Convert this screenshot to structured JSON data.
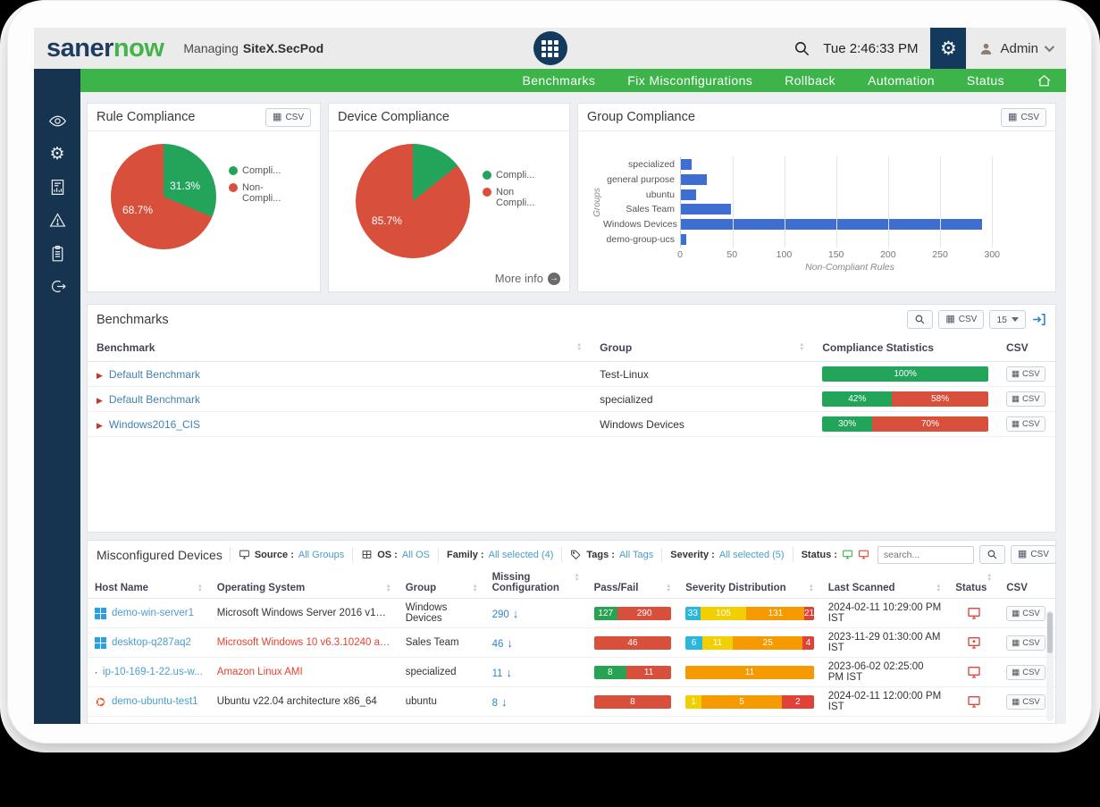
{
  "header": {
    "logo_saner": "saner",
    "logo_now": "now",
    "managing_label": "Managing",
    "tenant": "SiteX.SecPod",
    "time": "Tue 2:46:33 PM",
    "user_label": "Admin"
  },
  "nav": {
    "items": [
      "Benchmarks",
      "Fix Misconfigurations",
      "Rollback",
      "Automation",
      "Status"
    ]
  },
  "labels": {
    "csv": "CSV"
  },
  "chart_data": [
    {
      "type": "pie",
      "title": "Rule Compliance",
      "labels": [
        "Compliant",
        "Non-Compliant"
      ],
      "legend": [
        "Compli...",
        "Non-Compli..."
      ],
      "values": [
        31.3,
        68.7
      ],
      "data_labels": [
        "31.3%",
        "68.7%"
      ],
      "colors": [
        "#23a45b",
        "#d8503c"
      ],
      "legend_position": "right"
    },
    {
      "type": "pie",
      "title": "Device Compliance",
      "labels": [
        "Compliant",
        "Non Compliant"
      ],
      "legend": [
        "Compli...",
        "Non Compli..."
      ],
      "values": [
        14.3,
        85.7
      ],
      "data_labels": [
        "",
        "85.7%"
      ],
      "colors": [
        "#23a45b",
        "#d8503c"
      ],
      "legend_position": "right"
    },
    {
      "type": "bar",
      "title": "Group Compliance",
      "orientation": "horizontal",
      "categories": [
        "specialized",
        "general purpose",
        "ubuntu",
        "Sales Team",
        "Windows Devices",
        "demo-group-ucs"
      ],
      "values": [
        10,
        25,
        15,
        48,
        290,
        5
      ],
      "xticks": [
        0,
        50,
        100,
        150,
        200,
        250,
        300
      ],
      "xmax": 335,
      "xlabel": "Non-Compliant Rules",
      "ylabel": "Groups",
      "bar_color": "#3e6ed0",
      "grid": true
    }
  ],
  "panels": {
    "rule": {
      "title": "Rule Compliance"
    },
    "device": {
      "title": "Device Compliance",
      "more_info": "More info"
    },
    "group": {
      "title": "Group Compliance"
    }
  },
  "benchmarks": {
    "title": "Benchmarks",
    "page_size": "15",
    "columns": [
      "Benchmark",
      "Group",
      "Compliance Statistics",
      "CSV"
    ],
    "rows": [
      {
        "name": "Default Benchmark",
        "group": "Test-Linux",
        "segments": [
          {
            "label": "100%",
            "color": "green"
          }
        ]
      },
      {
        "name": "Default Benchmark",
        "group": "specialized",
        "segments": [
          {
            "label": "42%",
            "color": "green"
          },
          {
            "label": "58%",
            "color": "red"
          }
        ]
      },
      {
        "name": "Windows2016_CIS",
        "group": "Windows Devices",
        "segments": [
          {
            "label": "30%",
            "color": "green"
          },
          {
            "label": "70%",
            "color": "red"
          }
        ]
      }
    ]
  },
  "misconfigured": {
    "title": "Misconfigured Devices",
    "filters": {
      "source": {
        "label": "Source :",
        "value": "All Groups"
      },
      "os": {
        "label": "OS :",
        "value": "All OS"
      },
      "family": {
        "label": "Family :",
        "value": "All selected (4)"
      },
      "tags": {
        "label": "Tags :",
        "value": "All Tags"
      },
      "severity": {
        "label": "Severity :",
        "value": "All selected (5)"
      },
      "status": {
        "label": "Status :"
      }
    },
    "search_placeholder": "search...",
    "page_size": "15",
    "columns": [
      "Host Name",
      "Operating System",
      "Group",
      "Missing Configuration",
      "Pass/Fail",
      "Severity Distribution",
      "Last Scanned",
      "Status",
      "CSV"
    ],
    "rows": [
      {
        "host": "demo-win-server1",
        "os": "Microsoft Windows Server 2016 v1607 a...",
        "group": "Windows Devices",
        "missing": "290",
        "passfail": {
          "pass": "127",
          "fail": "290"
        },
        "severity": {
          "low": "33",
          "medium": "105",
          "high": "131",
          "critical": "21"
        },
        "last_scanned": "2024-02-11 10:29:00 PM IST"
      },
      {
        "host": "desktop-q287aq2",
        "os": "Microsoft Windows 10 v6.3.10240 archit...",
        "group": "Sales Team",
        "missing": "46",
        "passfail": {
          "fail": "46"
        },
        "severity": {
          "low": "6",
          "medium": "11",
          "high": "25",
          "critical": "4"
        },
        "last_scanned": "2023-11-29 01:30:00 AM IST"
      },
      {
        "host": "ip-10-169-1-22.us-w...",
        "os": "Amazon Linux AMI",
        "group": "specialized",
        "missing": "11",
        "passfail": {
          "pass": "8",
          "fail": "11"
        },
        "severity": {
          "high": "11"
        },
        "last_scanned": "2023-06-02 02:25:00 PM IST"
      },
      {
        "host": "demo-ubuntu-test1",
        "os": "Ubuntu v22.04 architecture x86_64",
        "group": "ubuntu",
        "missing": "8",
        "passfail": {
          "fail": "8"
        },
        "severity": {
          "medium": "1",
          "high": "5",
          "critical": "2"
        },
        "last_scanned": "2024-02-11 12:00:00 PM IST"
      }
    ]
  }
}
